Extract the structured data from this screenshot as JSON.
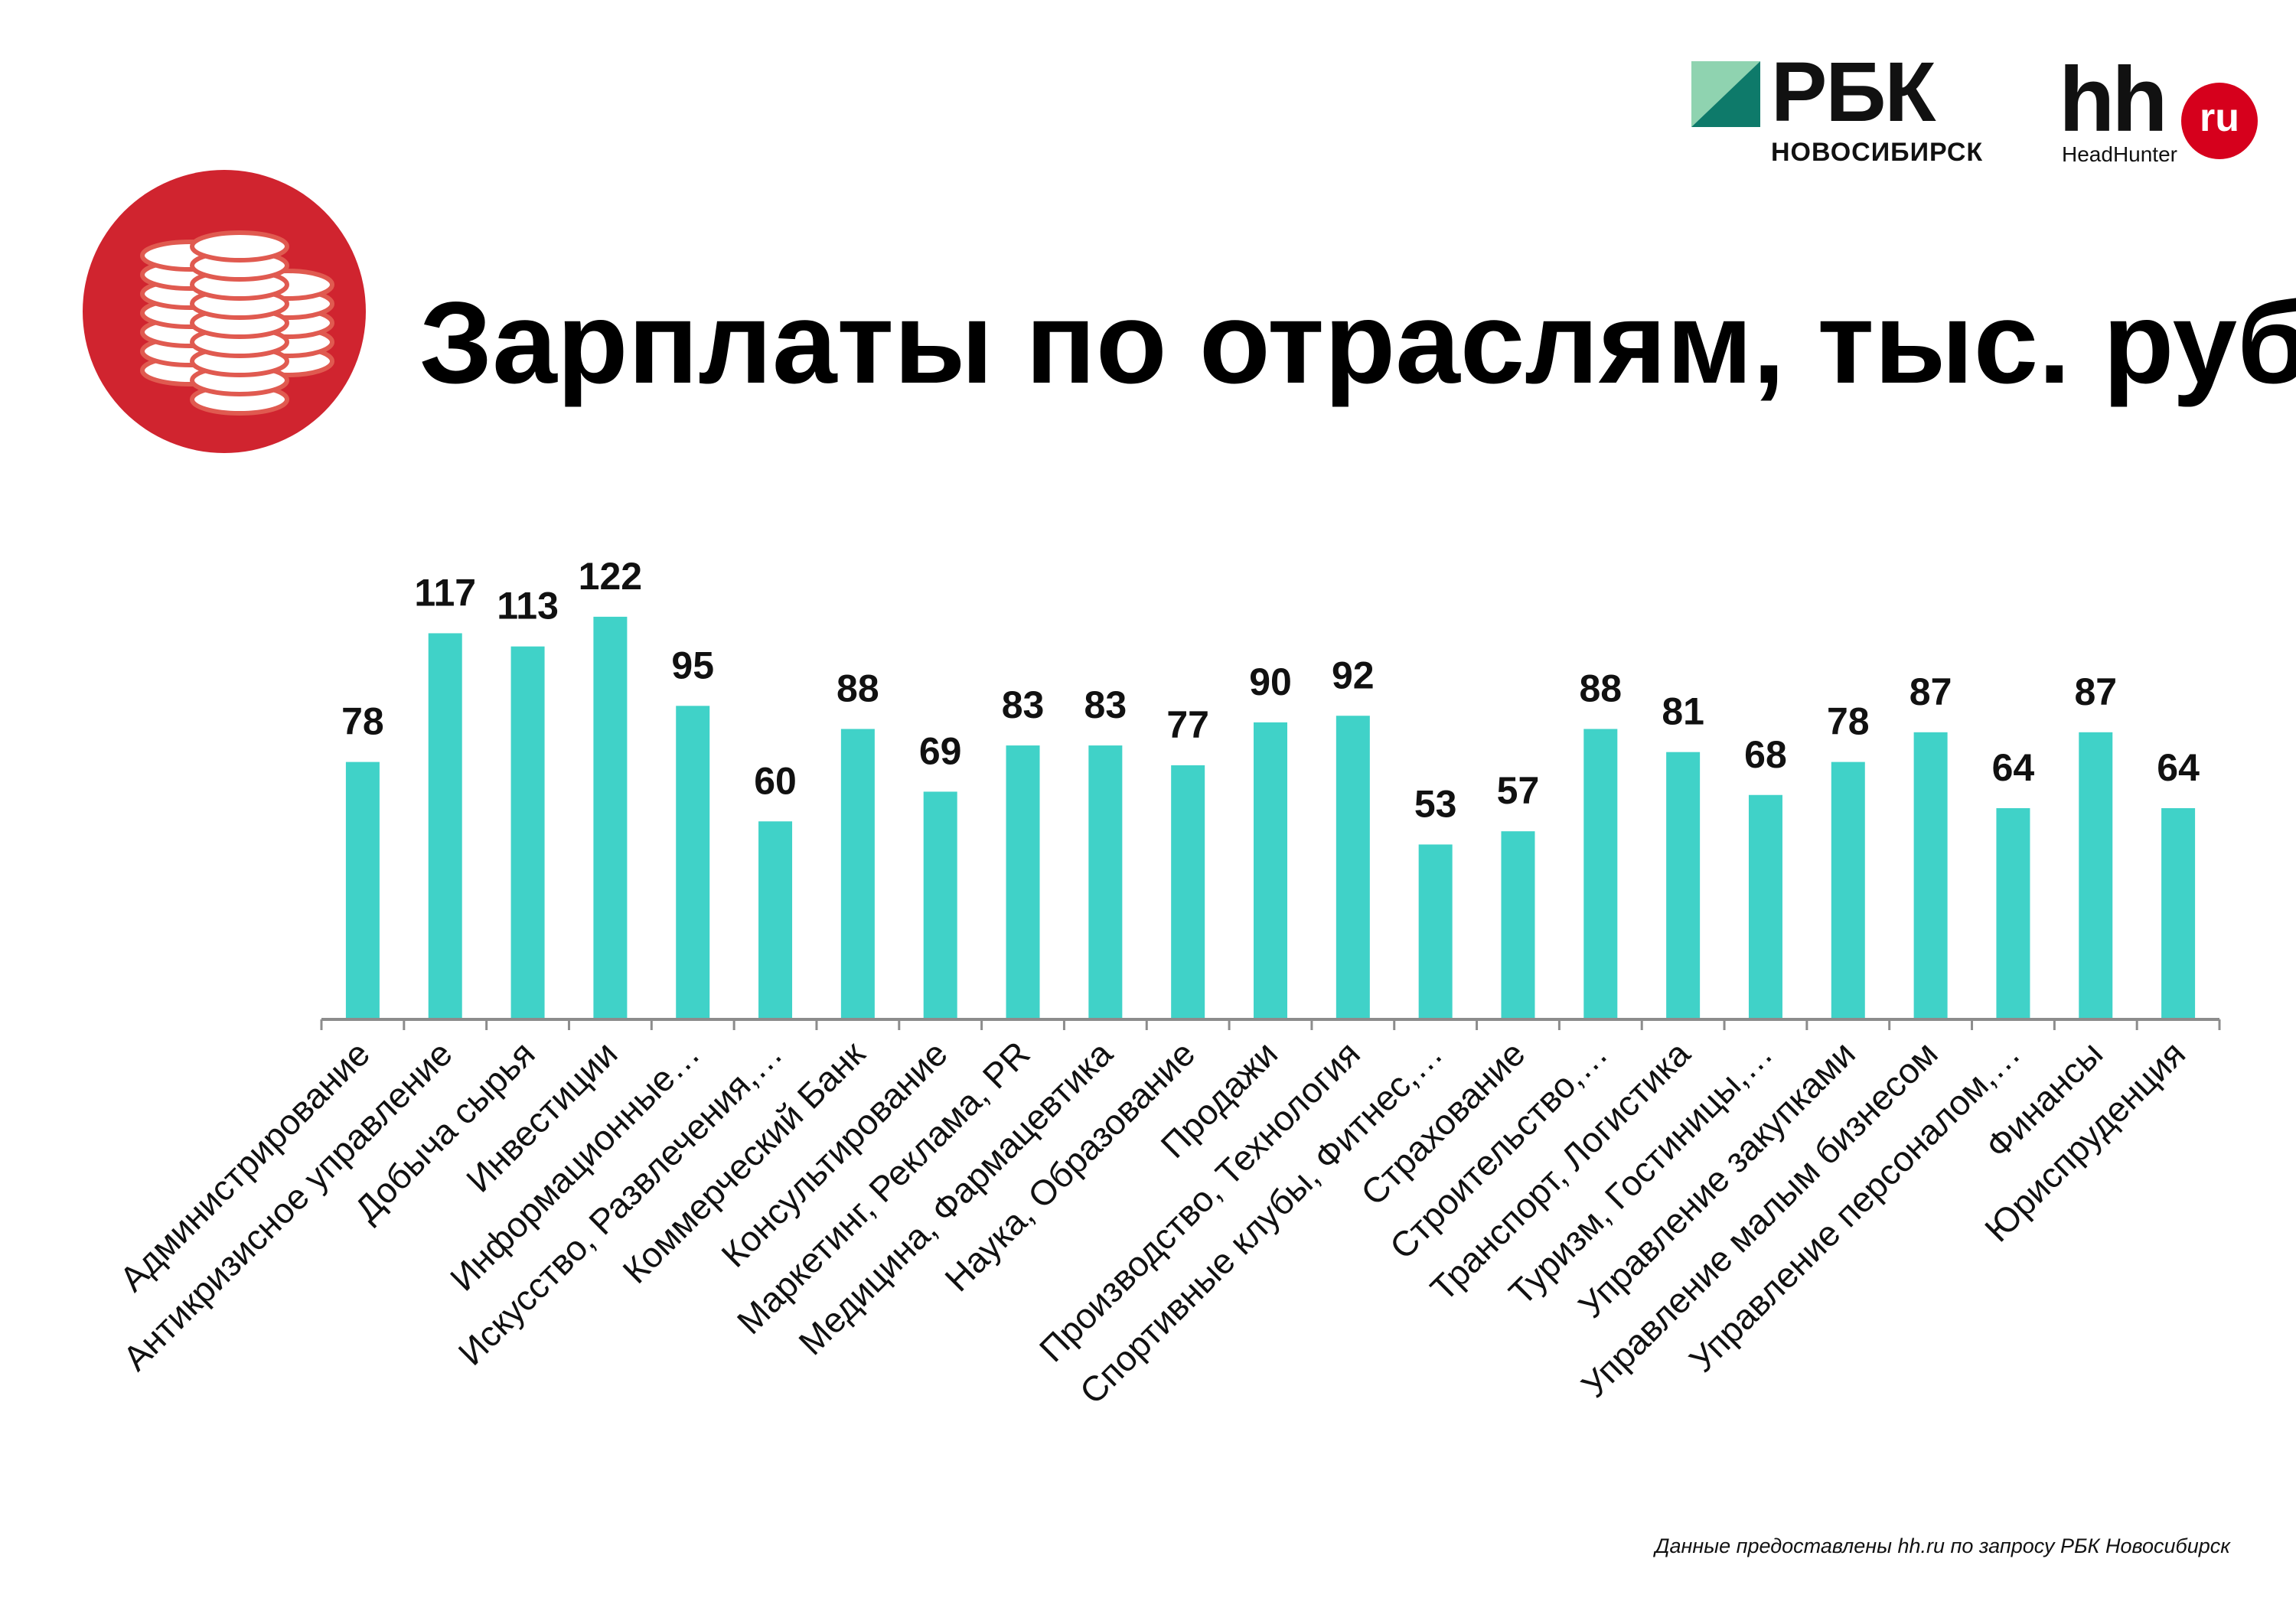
{
  "header": {
    "title": "Зарплаты по отраслям, тыс. руб.",
    "rbc_logo_text": "РБК",
    "rbc_logo_city": "НОВОСИБИРСК",
    "hh_logo_text": "hh",
    "hh_logo_badge": "ru",
    "hh_logo_sub": "HeadHunter"
  },
  "footer": {
    "source": "Данные предоставлены hh.ru по запросу РБК Новосибирск"
  },
  "colors": {
    "bar": "#40d2c8",
    "icon_bg": "#d0242f",
    "axis": "#8c8c8c",
    "text": "#111111"
  },
  "chart_data": {
    "type": "bar",
    "title": "Зарплаты по отраслям, тыс. руб.",
    "xlabel": "",
    "ylabel": "",
    "ylim": [
      0,
      128
    ],
    "grid": false,
    "legend": "none",
    "categories": [
      "Администрирование",
      "Антикризисное управление",
      "Добыча сырья",
      "Инвестиции",
      "Информационные…",
      "Искусство, Развлечения,…",
      "Коммерческий Банк",
      "Консультирование",
      "Маркетинг, Реклама, PR",
      "Медицина, Фармацевтика",
      "Наука, Образование",
      "Продажи",
      "Производство, Технология",
      "Спортивные клубы, Фитнес,…",
      "Страхование",
      "Строительство,…",
      "Транспорт, Логистика",
      "Туризм, Гостиницы,…",
      "Управление закупками",
      "Управление малым бизнесом",
      "Управление персоналом,…",
      "Финансы",
      "Юриспруденция"
    ],
    "values": [
      78,
      117,
      113,
      122,
      95,
      60,
      88,
      69,
      83,
      83,
      77,
      90,
      92,
      53,
      57,
      88,
      81,
      68,
      78,
      87,
      64,
      87,
      64
    ]
  }
}
